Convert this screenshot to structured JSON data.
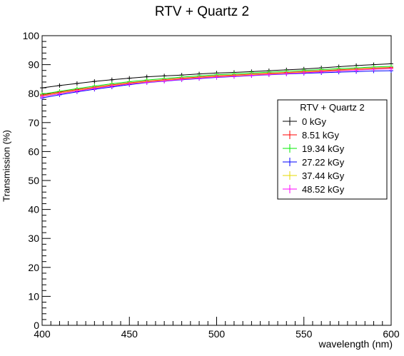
{
  "chart_data": {
    "type": "line",
    "title": "RTV + Quartz 2",
    "xlabel": "wavelength (nm)",
    "ylabel": "Transmission (%)",
    "xlim": [
      400,
      600
    ],
    "ylim": [
      0,
      100
    ],
    "x_ticks": [
      "400",
      "450",
      "500",
      "550",
      "600"
    ],
    "y_ticks": [
      "0",
      "10",
      "20",
      "30",
      "40",
      "50",
      "60",
      "70",
      "80",
      "90",
      "100"
    ],
    "grid": false,
    "legend": {
      "title": "RTV + Quartz 2",
      "position": "right-middle"
    },
    "x": [
      400,
      410,
      420,
      430,
      440,
      450,
      460,
      470,
      480,
      490,
      500,
      510,
      520,
      530,
      540,
      550,
      560,
      570,
      580,
      590,
      600
    ],
    "series": [
      {
        "name": "0 kGy",
        "color": "#000000",
        "values": [
          82.0,
          82.8,
          83.5,
          84.2,
          84.8,
          85.3,
          85.8,
          86.1,
          86.4,
          86.8,
          87.1,
          87.3,
          87.6,
          87.9,
          88.2,
          88.5,
          88.9,
          89.3,
          89.7,
          90.0,
          90.3
        ]
      },
      {
        "name": "8.51 kGy",
        "color": "#ff0000",
        "values": [
          79.5,
          80.5,
          81.4,
          82.2,
          83.0,
          83.7,
          84.3,
          84.8,
          85.3,
          85.7,
          86.1,
          86.4,
          86.7,
          87.0,
          87.3,
          87.6,
          87.9,
          88.2,
          88.5,
          88.8,
          89.0
        ]
      },
      {
        "name": "19.34 kGy",
        "color": "#00ee00",
        "values": [
          79.8,
          80.8,
          81.7,
          82.6,
          83.4,
          84.1,
          84.7,
          85.2,
          85.7,
          86.1,
          86.5,
          86.8,
          87.1,
          87.4,
          87.7,
          88.0,
          88.3,
          88.6,
          88.9,
          89.2,
          89.4
        ]
      },
      {
        "name": "27.22 kGy",
        "color": "#0000ff",
        "values": [
          78.5,
          79.6,
          80.6,
          81.5,
          82.3,
          83.1,
          83.8,
          84.3,
          84.8,
          85.2,
          85.6,
          85.9,
          86.2,
          86.5,
          86.8,
          87.0,
          87.2,
          87.4,
          87.6,
          87.8,
          87.9
        ]
      },
      {
        "name": "37.44 kGy",
        "color": "#e6d800",
        "values": [
          79.2,
          80.2,
          81.1,
          82.0,
          82.8,
          83.5,
          84.1,
          84.6,
          85.1,
          85.5,
          85.9,
          86.2,
          86.5,
          86.8,
          87.1,
          87.4,
          87.7,
          88.0,
          88.3,
          88.6,
          88.8
        ]
      },
      {
        "name": "48.52 kGy",
        "color": "#ff00ff",
        "values": [
          79.0,
          80.0,
          80.9,
          81.8,
          82.6,
          83.3,
          83.9,
          84.4,
          84.9,
          85.3,
          85.7,
          86.0,
          86.3,
          86.6,
          86.9,
          87.2,
          87.5,
          87.8,
          88.1,
          88.4,
          88.6
        ]
      }
    ]
  }
}
